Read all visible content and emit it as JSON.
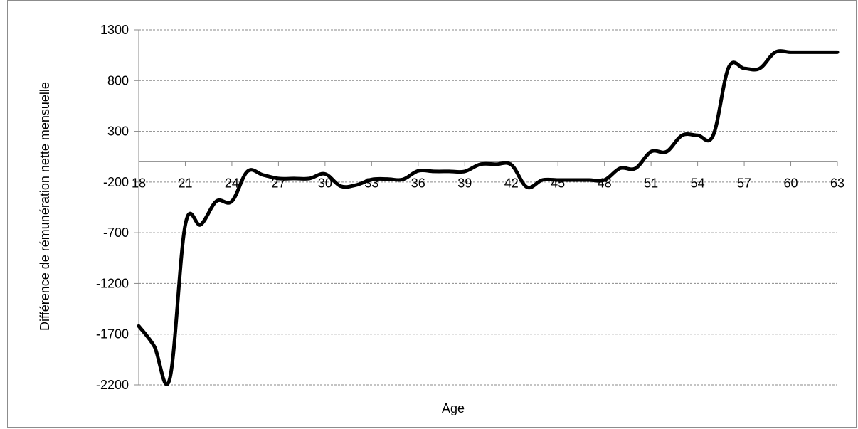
{
  "chart_data": {
    "type": "line",
    "title": "",
    "xlabel": "Age",
    "ylabel": "Différence de rémunération nette mensuelle",
    "xlim": [
      18,
      63
    ],
    "ylim": [
      -2200,
      1300
    ],
    "x_ticks": [
      18,
      21,
      24,
      27,
      30,
      33,
      36,
      39,
      42,
      45,
      48,
      51,
      54,
      57,
      60,
      63
    ],
    "y_ticks": [
      1300,
      800,
      300,
      -200,
      -700,
      -1200,
      -1700,
      -2200
    ],
    "grid": true,
    "legend": "none",
    "line_color": "#000000",
    "series": [
      {
        "x": [
          18,
          19,
          20,
          21,
          22,
          23,
          24,
          25,
          26,
          27,
          28,
          29,
          30,
          31,
          32,
          33,
          34,
          35,
          36,
          37,
          38,
          39,
          40,
          41,
          42,
          43,
          44,
          45,
          46,
          47,
          48,
          49,
          50,
          51,
          52,
          53,
          54,
          55,
          56,
          57,
          58,
          59,
          60,
          61,
          62,
          63
        ],
        "values": [
          -1620,
          -1820,
          -2140,
          -620,
          -620,
          -390,
          -390,
          -95,
          -130,
          -165,
          -165,
          -165,
          -120,
          -240,
          -230,
          -175,
          -170,
          -175,
          -90,
          -95,
          -95,
          -95,
          -25,
          -25,
          -30,
          -250,
          -180,
          -180,
          -180,
          -180,
          -180,
          -65,
          -65,
          100,
          100,
          260,
          260,
          260,
          930,
          920,
          920,
          1080,
          1080,
          1080,
          1080,
          1080
        ]
      }
    ]
  }
}
